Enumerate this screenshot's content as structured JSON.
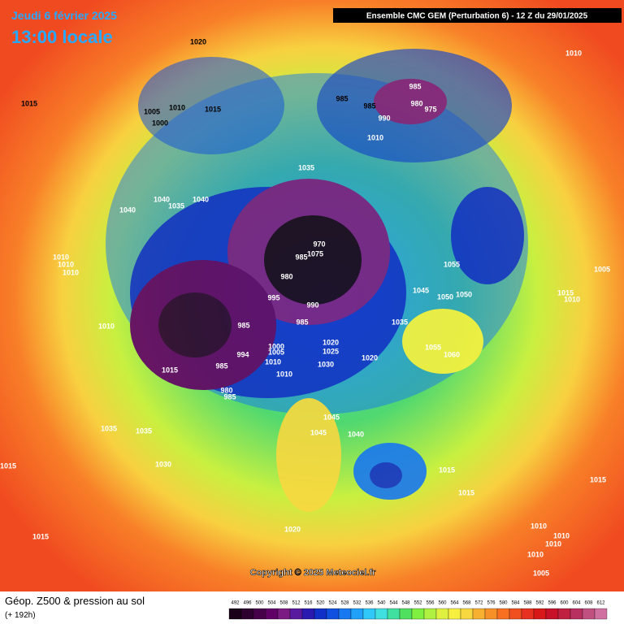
{
  "header": {
    "date": "Jeudi 6 février 2025",
    "time": "13:00 locale",
    "model": "Ensemble CMC GEM  (Perturbation 6)  -  12 Z du 29/01/2025"
  },
  "isobar_labels": [
    "1020",
    "1015",
    "1005",
    "1010",
    "1015",
    "1000",
    "985",
    "985",
    "985",
    "980",
    "975",
    "990",
    "1010",
    "1035",
    "1040",
    "1040",
    "1035",
    "1040",
    "970",
    "1075",
    "985",
    "980",
    "995",
    "990",
    "985",
    "985",
    "1010",
    "1045",
    "1050",
    "1050",
    "1055",
    "1015",
    "1010",
    "1005",
    "1010",
    "1010",
    "1010",
    "1020",
    "1025",
    "1030",
    "1020",
    "1035",
    "1055",
    "1060",
    "994",
    "985",
    "1000",
    "1005",
    "1010",
    "1010",
    "1015",
    "980",
    "985",
    "1045",
    "1045",
    "1040",
    "1035",
    "1035",
    "1030",
    "1015",
    "1015",
    "1015",
    "1015",
    "1020",
    "1015",
    "1010",
    "1010",
    "1010",
    "1010",
    "1005",
    "1010"
  ],
  "copyright": "Copyright © 2025 Meteociel.fr",
  "footer": {
    "title": "Géop. Z500 & pression au sol",
    "lead": "(+ 192h)"
  },
  "legend": {
    "values": [
      492,
      496,
      500,
      504,
      508,
      512,
      516,
      520,
      524,
      528,
      532,
      536,
      540,
      544,
      548,
      552,
      556,
      560,
      564,
      568,
      572,
      576,
      580,
      584,
      588,
      592,
      596,
      600,
      604,
      608,
      612
    ],
    "colors": [
      "#1a0018",
      "#2e0030",
      "#46004a",
      "#600066",
      "#7a1a82",
      "#5a1aa0",
      "#2a1ab0",
      "#1030c8",
      "#1050e0",
      "#1878f0",
      "#20a0f8",
      "#30c8f8",
      "#40e0e0",
      "#40e0a0",
      "#50e060",
      "#80f040",
      "#b0f040",
      "#e0f040",
      "#f8f040",
      "#f8d840",
      "#f8b030",
      "#f89028",
      "#f87020",
      "#f05020",
      "#e83020",
      "#d81818",
      "#c81028",
      "#c02040",
      "#b83060",
      "#c05080",
      "#d070a0"
    ]
  }
}
